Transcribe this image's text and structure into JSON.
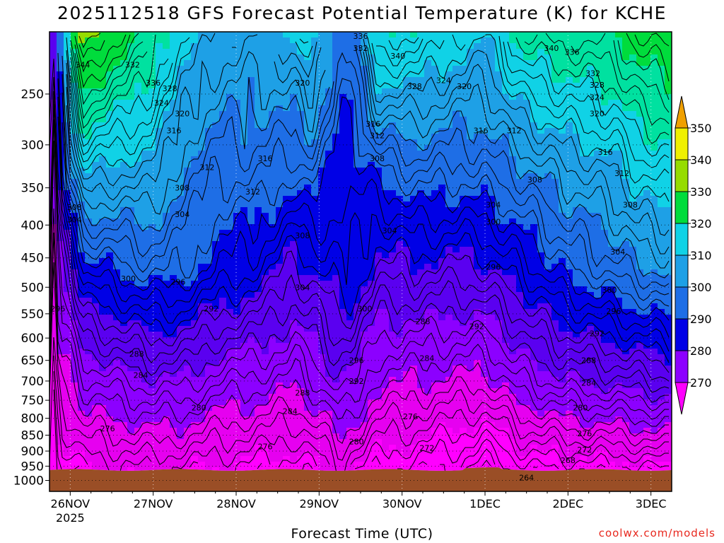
{
  "title": "2025112518 GFS Forecast Potential Temperature (K) for KCHE",
  "credit": "coolwx.com/models",
  "chart_data": {
    "type": "contour",
    "title": "2025112518 GFS Forecast Potential Temperature (K) for KCHE",
    "xlabel": "Forecast Time (UTC)",
    "ylabel": "",
    "x_ticks": [
      {
        "label": "26NOV",
        "sublabel": "2025",
        "day": 26
      },
      {
        "label": "27NOV",
        "sublabel": "",
        "day": 27
      },
      {
        "label": "28NOV",
        "sublabel": "",
        "day": 28
      },
      {
        "label": "29NOV",
        "sublabel": "",
        "day": 29
      },
      {
        "label": "30NOV",
        "sublabel": "",
        "day": 30
      },
      {
        "label": "1DEC",
        "sublabel": "",
        "day": 31
      },
      {
        "label": "2DEC",
        "sublabel": "",
        "day": 32
      },
      {
        "label": "3DEC",
        "sublabel": "",
        "day": 33
      }
    ],
    "x_range_days": [
      25.75,
      33.25
    ],
    "y_ticks": [
      "250",
      "300",
      "350",
      "400",
      "450",
      "500",
      "550",
      "600",
      "650",
      "700",
      "750",
      "800",
      "850",
      "900",
      "950",
      "1000"
    ],
    "y_range_hpa": [
      200,
      1040
    ],
    "y_scale": "log",
    "colorbar": {
      "levels": [
        "270",
        "280",
        "290",
        "300",
        "310",
        "320",
        "330",
        "340",
        "350"
      ],
      "colors": [
        "#ff00ff",
        "#e600f0",
        "#8c00ff",
        "#5a00f0",
        "#0000e6",
        "#1e6ee6",
        "#1ea0e6",
        "#10d2e6",
        "#00e1a0",
        "#00dc3c",
        "#96dc00",
        "#f0f000",
        "#f0a000"
      ]
    },
    "contour_interval_K": 2,
    "surface_color": "#9a4e26",
    "contour_labels": [
      {
        "v": "336",
        "d": 27.0,
        "p": 240
      },
      {
        "v": "344",
        "d": 26.15,
        "p": 225
      },
      {
        "v": "332",
        "d": 26.75,
        "p": 225
      },
      {
        "v": "328",
        "d": 27.2,
        "p": 245
      },
      {
        "v": "324",
        "d": 27.1,
        "p": 258
      },
      {
        "v": "320",
        "d": 27.35,
        "p": 268
      },
      {
        "v": "316",
        "d": 27.25,
        "p": 285
      },
      {
        "v": "312",
        "d": 27.65,
        "p": 325
      },
      {
        "v": "308",
        "d": 26.05,
        "p": 375
      },
      {
        "v": "304",
        "d": 26.05,
        "p": 392
      },
      {
        "v": "308",
        "d": 27.35,
        "p": 350
      },
      {
        "v": "304",
        "d": 27.35,
        "p": 385
      },
      {
        "v": "300",
        "d": 26.7,
        "p": 485
      },
      {
        "v": "296",
        "d": 27.3,
        "p": 490
      },
      {
        "v": "296",
        "d": 25.85,
        "p": 540
      },
      {
        "v": "292",
        "d": 27.7,
        "p": 540
      },
      {
        "v": "288",
        "d": 26.8,
        "p": 635
      },
      {
        "v": "284",
        "d": 26.85,
        "p": 685
      },
      {
        "v": "280",
        "d": 27.55,
        "p": 770
      },
      {
        "v": "276",
        "d": 26.45,
        "p": 830
      },
      {
        "v": "276",
        "d": 28.35,
        "p": 885
      },
      {
        "v": "320",
        "d": 28.8,
        "p": 240
      },
      {
        "v": "316",
        "d": 28.35,
        "p": 315
      },
      {
        "v": "312",
        "d": 28.2,
        "p": 355
      },
      {
        "v": "308",
        "d": 28.8,
        "p": 415
      },
      {
        "v": "304",
        "d": 28.8,
        "p": 500
      },
      {
        "v": "300",
        "d": 29.55,
        "p": 540
      },
      {
        "v": "296",
        "d": 29.45,
        "p": 650
      },
      {
        "v": "292",
        "d": 29.45,
        "p": 700
      },
      {
        "v": "288",
        "d": 28.8,
        "p": 730
      },
      {
        "v": "284",
        "d": 28.65,
        "p": 780
      },
      {
        "v": "280",
        "d": 29.45,
        "p": 870
      },
      {
        "v": "336",
        "d": 29.5,
        "p": 203
      },
      {
        "v": "332",
        "d": 29.5,
        "p": 212
      },
      {
        "v": "340",
        "d": 29.95,
        "p": 218
      },
      {
        "v": "316",
        "d": 29.65,
        "p": 278
      },
      {
        "v": "312",
        "d": 29.7,
        "p": 290
      },
      {
        "v": "308",
        "d": 29.7,
        "p": 315
      },
      {
        "v": "304",
        "d": 29.85,
        "p": 408
      },
      {
        "v": "328",
        "d": 30.15,
        "p": 243
      },
      {
        "v": "324",
        "d": 30.5,
        "p": 238
      },
      {
        "v": "320",
        "d": 30.75,
        "p": 243
      },
      {
        "v": "316",
        "d": 30.95,
        "p": 285
      },
      {
        "v": "312",
        "d": 31.35,
        "p": 285
      },
      {
        "v": "304",
        "d": 31.1,
        "p": 372
      },
      {
        "v": "300",
        "d": 31.1,
        "p": 395
      },
      {
        "v": "296",
        "d": 31.1,
        "p": 465
      },
      {
        "v": "292",
        "d": 30.9,
        "p": 575
      },
      {
        "v": "288",
        "d": 30.25,
        "p": 565
      },
      {
        "v": "284",
        "d": 30.3,
        "p": 645
      },
      {
        "v": "276",
        "d": 30.1,
        "p": 795
      },
      {
        "v": "272",
        "d": 30.3,
        "p": 890
      },
      {
        "v": "264",
        "d": 31.5,
        "p": 990
      },
      {
        "v": "340",
        "d": 31.8,
        "p": 212
      },
      {
        "v": "336",
        "d": 32.05,
        "p": 215
      },
      {
        "v": "332",
        "d": 32.3,
        "p": 232
      },
      {
        "v": "328",
        "d": 32.35,
        "p": 242
      },
      {
        "v": "324",
        "d": 32.35,
        "p": 253
      },
      {
        "v": "320",
        "d": 32.35,
        "p": 268
      },
      {
        "v": "316",
        "d": 32.45,
        "p": 308
      },
      {
        "v": "312",
        "d": 32.65,
        "p": 332
      },
      {
        "v": "308",
        "d": 31.6,
        "p": 340
      },
      {
        "v": "308",
        "d": 32.75,
        "p": 372
      },
      {
        "v": "304",
        "d": 32.6,
        "p": 440
      },
      {
        "v": "300",
        "d": 32.5,
        "p": 505
      },
      {
        "v": "296",
        "d": 32.55,
        "p": 545
      },
      {
        "v": "292",
        "d": 32.35,
        "p": 590
      },
      {
        "v": "288",
        "d": 32.25,
        "p": 650
      },
      {
        "v": "284",
        "d": 32.25,
        "p": 705
      },
      {
        "v": "280",
        "d": 32.15,
        "p": 770
      },
      {
        "v": "276",
        "d": 32.2,
        "p": 845
      },
      {
        "v": "272",
        "d": 32.2,
        "p": 895
      },
      {
        "v": "268",
        "d": 32.0,
        "p": 930
      }
    ]
  }
}
